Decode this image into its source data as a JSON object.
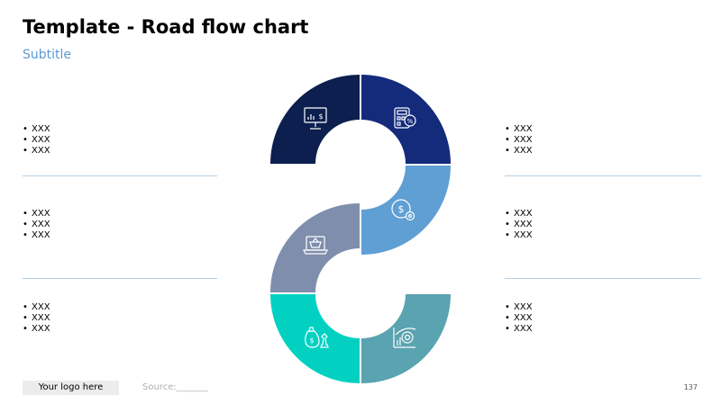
{
  "header": {
    "title": "Template - Road flow chart",
    "subtitle": "Subtitle"
  },
  "left_column": [
    {
      "bullets": [
        "XXX",
        "XXX",
        "XXX"
      ]
    },
    {
      "bullets": [
        "XXX",
        "XXX",
        "XXX"
      ]
    },
    {
      "bullets": [
        "XXX",
        "XXX",
        "XXX"
      ]
    }
  ],
  "right_column": [
    {
      "bullets": [
        "XXX",
        "XXX",
        "XXX"
      ]
    },
    {
      "bullets": [
        "XXX",
        "XXX",
        "XXX"
      ]
    },
    {
      "bullets": [
        "XXX",
        "XXX",
        "XXX"
      ]
    }
  ],
  "segments": [
    {
      "icon": "presentation-chart-icon",
      "color": "#0c1f4f"
    },
    {
      "icon": "calculator-percent-icon",
      "color": "#142a7b"
    },
    {
      "icon": "dollar-gear-icon",
      "color": "#5f9fd4"
    },
    {
      "icon": "laptop-basket-icon",
      "color": "#7e8eac"
    },
    {
      "icon": "money-bag-chess-icon",
      "color": "#02d1c2"
    },
    {
      "icon": "growth-chart-target-icon",
      "color": "#5aa3b0"
    }
  ],
  "footer": {
    "logo": "Your logo here",
    "source": "Source:_______",
    "page": "137"
  }
}
